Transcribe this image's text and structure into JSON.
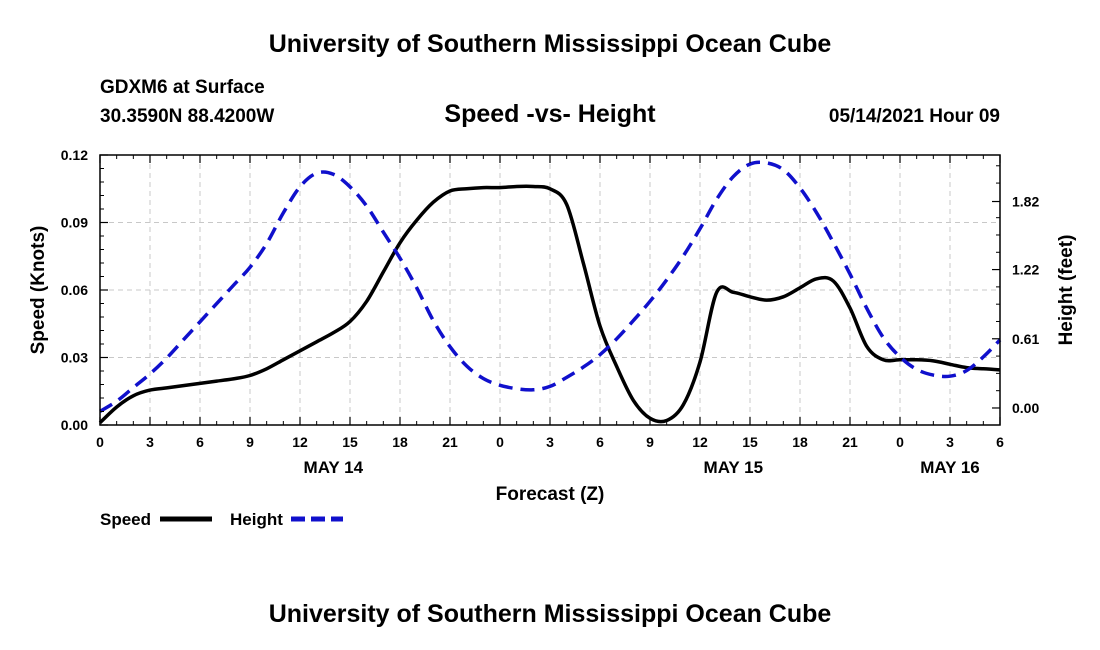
{
  "header": {
    "title_top": "University of Southern Mississippi Ocean Cube",
    "station": "GDXM6 at Surface",
    "coords": "30.3590N  88.4200W",
    "datetime": "05/14/2021 Hour 09",
    "title_bottom": "University of Southern Mississippi Ocean Cube"
  },
  "chart_data": {
    "type": "line",
    "title": "Speed -vs- Height",
    "xlabel": "Forecast (Z)",
    "ylabel": "Speed (Knots)",
    "y2label": "Height (feet)",
    "x_ticks": [
      "0",
      "3",
      "6",
      "9",
      "12",
      "15",
      "18",
      "21",
      "0",
      "3",
      "6",
      "9",
      "12",
      "15",
      "18",
      "21",
      "0",
      "3",
      "6"
    ],
    "x_range_hours": [
      0,
      54
    ],
    "day_labels": [
      {
        "label": "MAY 14",
        "hour": 14
      },
      {
        "label": "MAY 15",
        "hour": 38
      },
      {
        "label": "MAY 16",
        "hour": 51
      }
    ],
    "ylim": [
      0,
      0.12
    ],
    "y_ticks": [
      "0.00",
      "0.03",
      "0.06",
      "0.09",
      "0.12"
    ],
    "y2lim": [
      -0.15,
      2.23
    ],
    "y2_ticks": [
      "0.00",
      "0.61",
      "1.22",
      "1.82"
    ],
    "grid": true,
    "series": [
      {
        "name": "Speed",
        "axis": "left",
        "color": "#000000",
        "dash": "solid",
        "x": [
          0,
          1,
          2,
          3,
          4,
          5,
          6,
          7,
          8,
          9,
          10,
          11,
          12,
          13,
          14,
          15,
          16,
          17,
          18,
          19,
          20,
          21,
          22,
          23,
          24,
          25,
          26,
          27,
          28,
          29,
          30,
          31,
          32,
          33,
          34,
          35,
          36,
          37,
          38,
          39,
          40,
          41,
          42,
          43,
          44,
          45,
          46,
          47,
          48,
          49,
          50,
          51,
          52,
          53,
          54
        ],
        "values": [
          0.001,
          0.008,
          0.013,
          0.0155,
          0.0165,
          0.0175,
          0.0185,
          0.0195,
          0.0205,
          0.022,
          0.025,
          0.029,
          0.033,
          0.037,
          0.041,
          0.046,
          0.055,
          0.068,
          0.081,
          0.091,
          0.099,
          0.104,
          0.105,
          0.1055,
          0.1055,
          0.106,
          0.106,
          0.105,
          0.098,
          0.072,
          0.044,
          0.026,
          0.011,
          0.003,
          0.002,
          0.009,
          0.028,
          0.059,
          0.059,
          0.057,
          0.0555,
          0.057,
          0.061,
          0.065,
          0.064,
          0.052,
          0.035,
          0.029,
          0.029,
          0.029,
          0.0285,
          0.027,
          0.0255,
          0.025,
          0.0245
        ]
      },
      {
        "name": "Height",
        "axis": "right",
        "color": "#1010cc",
        "dash": "dashed",
        "x": [
          0,
          1,
          2,
          3,
          4,
          5,
          6,
          7,
          8,
          9,
          10,
          11,
          12,
          13,
          14,
          15,
          16,
          17,
          18,
          19,
          20,
          21,
          22,
          23,
          24,
          25,
          26,
          27,
          28,
          29,
          30,
          31,
          32,
          33,
          34,
          35,
          36,
          37,
          38,
          39,
          40,
          41,
          42,
          43,
          44,
          45,
          46,
          47,
          48,
          49,
          50,
          51,
          52,
          53,
          54
        ],
        "values": [
          -0.03,
          0.06,
          0.18,
          0.3,
          0.44,
          0.6,
          0.76,
          0.92,
          1.08,
          1.24,
          1.45,
          1.72,
          1.95,
          2.07,
          2.06,
          1.95,
          1.78,
          1.55,
          1.32,
          1.06,
          0.77,
          0.54,
          0.37,
          0.26,
          0.2,
          0.17,
          0.16,
          0.19,
          0.27,
          0.36,
          0.47,
          0.61,
          0.77,
          0.94,
          1.13,
          1.34,
          1.58,
          1.84,
          2.04,
          2.15,
          2.16,
          2.1,
          1.94,
          1.72,
          1.46,
          1.18,
          0.88,
          0.62,
          0.45,
          0.34,
          0.29,
          0.28,
          0.33,
          0.45,
          0.6
        ]
      }
    ],
    "legend": [
      {
        "label": "Speed",
        "color": "#000000",
        "dash": "solid"
      },
      {
        "label": "Height",
        "color": "#1010cc",
        "dash": "dashed"
      }
    ],
    "legend_position": "bottom-left"
  }
}
